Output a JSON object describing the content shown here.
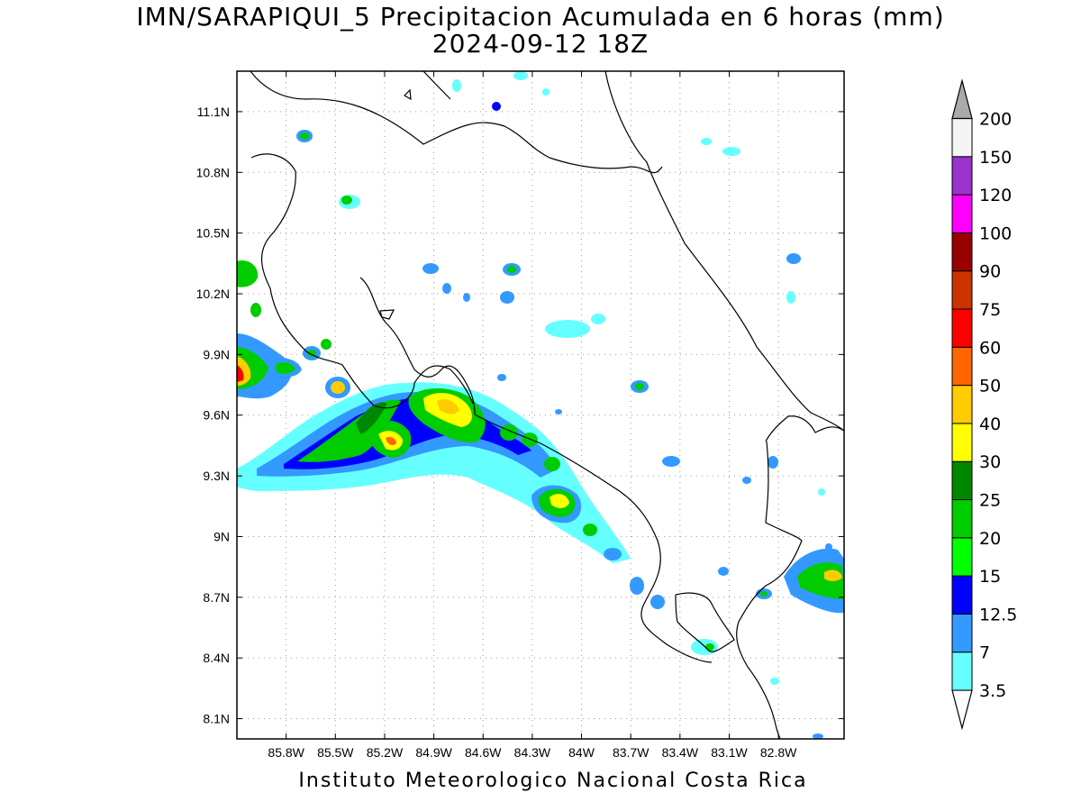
{
  "title": "IMN/SARAPIQUI_5 Precipitacion Acumulada en 6 horas (mm)",
  "subtitle": "2024-09-12 18Z",
  "footer": "Instituto Meteorologico Nacional Costa Rica",
  "map": {
    "lon_range": [
      -86.1,
      -82.4
    ],
    "lat_range": [
      8.0,
      11.3
    ],
    "lon_ticks": [
      {
        "value": -85.8,
        "label": "85.8W"
      },
      {
        "value": -85.5,
        "label": "85.5W"
      },
      {
        "value": -85.2,
        "label": "85.2W"
      },
      {
        "value": -84.9,
        "label": "84.9W"
      },
      {
        "value": -84.6,
        "label": "84.6W"
      },
      {
        "value": -84.3,
        "label": "84.3W"
      },
      {
        "value": -84.0,
        "label": "84W"
      },
      {
        "value": -83.7,
        "label": "83.7W"
      },
      {
        "value": -83.4,
        "label": "83.4W"
      },
      {
        "value": -83.1,
        "label": "83.1W"
      },
      {
        "value": -82.8,
        "label": "82.8W"
      }
    ],
    "lat_ticks": [
      {
        "value": 11.1,
        "label": "11.1N"
      },
      {
        "value": 10.8,
        "label": "10.8N"
      },
      {
        "value": 10.5,
        "label": "10.5N"
      },
      {
        "value": 10.2,
        "label": "10.2N"
      },
      {
        "value": 9.9,
        "label": "9.9N"
      },
      {
        "value": 9.6,
        "label": "9.6N"
      },
      {
        "value": 9.3,
        "label": "9.3N"
      },
      {
        "value": 9.0,
        "label": "9N"
      },
      {
        "value": 8.7,
        "label": "8.7N"
      },
      {
        "value": 8.4,
        "label": "8.4N"
      },
      {
        "value": 8.1,
        "label": "8.1N"
      }
    ],
    "grid": "dotted"
  },
  "colorbar": {
    "levels": [
      {
        "label": "3.5",
        "color": "#66ffff"
      },
      {
        "label": "7",
        "color": "#3399ff"
      },
      {
        "label": "12.5",
        "color": "#0000ff"
      },
      {
        "label": "15",
        "color": "#00ff00"
      },
      {
        "label": "20",
        "color": "#00cc00"
      },
      {
        "label": "25",
        "color": "#008800"
      },
      {
        "label": "30",
        "color": "#ffff00"
      },
      {
        "label": "40",
        "color": "#ffcc00"
      },
      {
        "label": "50",
        "color": "#ff6600"
      },
      {
        "label": "60",
        "color": "#ff0000"
      },
      {
        "label": "75",
        "color": "#cc3300"
      },
      {
        "label": "90",
        "color": "#990000"
      },
      {
        "label": "100",
        "color": "#ff00ff"
      },
      {
        "label": "120",
        "color": "#9933cc"
      },
      {
        "label": "150",
        "color": "#f5f5f5"
      },
      {
        "label": "200",
        "color": "#aaaaaa"
      }
    ]
  },
  "colors": {
    "coast": "#000000",
    "grid": "#999999",
    "rain_light": "#66ffff",
    "rain_moderate": "#3399ff",
    "rain_heavy": "#0000ff",
    "rain_green": "#00cc00",
    "rain_darkgreen": "#008800",
    "rain_yellow": "#ffff00",
    "rain_orange": "#ffcc00"
  }
}
